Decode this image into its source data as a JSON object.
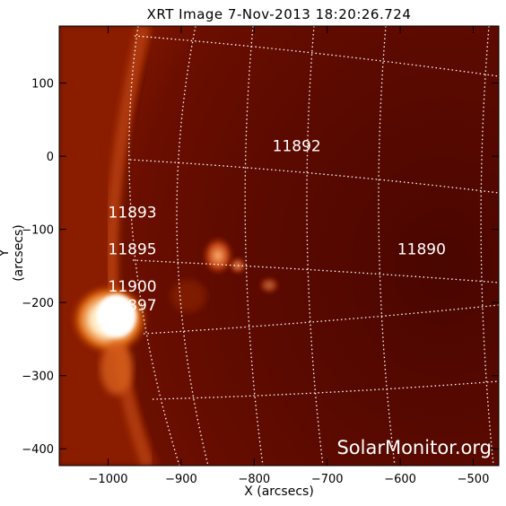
{
  "title": "XRT Image   7-Nov-2013 18:20:26.724",
  "x_axis": {
    "label": "X (arcsecs)",
    "range": [
      -1067,
      -465
    ],
    "ticks": [
      -1000,
      -900,
      -800,
      -700,
      -600,
      -500
    ],
    "tick_labels": [
      "−1000",
      "−900",
      "−800",
      "−700",
      "−600",
      "−500"
    ]
  },
  "y_axis": {
    "label": "Y (arcsecs)",
    "range": [
      -423,
      178
    ],
    "ticks": [
      100,
      0,
      -100,
      -200,
      -300,
      -400
    ],
    "tick_labels": [
      "100",
      "0",
      "−100",
      "−200",
      "−300",
      "−400"
    ]
  },
  "active_regions": [
    {
      "label": "11892",
      "x": -775,
      "y": 7
    },
    {
      "label": "11893",
      "x": -1000,
      "y": -84
    },
    {
      "label": "11895",
      "x": -1000,
      "y": -134
    },
    {
      "label": "11900",
      "x": -1000,
      "y": -185
    },
    {
      "label": "11897",
      "x": -1000,
      "y": -211
    },
    {
      "label": "11890",
      "x": -604,
      "y": -134
    }
  ],
  "watermark": "SolarMonitor.org",
  "colors": {
    "background": "#ffffff",
    "disk": "#5f0a00",
    "limb_glow": "#a32a00",
    "flare_core": "#fff4dc",
    "grid": "#ffffff",
    "labels": "#ffffff"
  }
}
